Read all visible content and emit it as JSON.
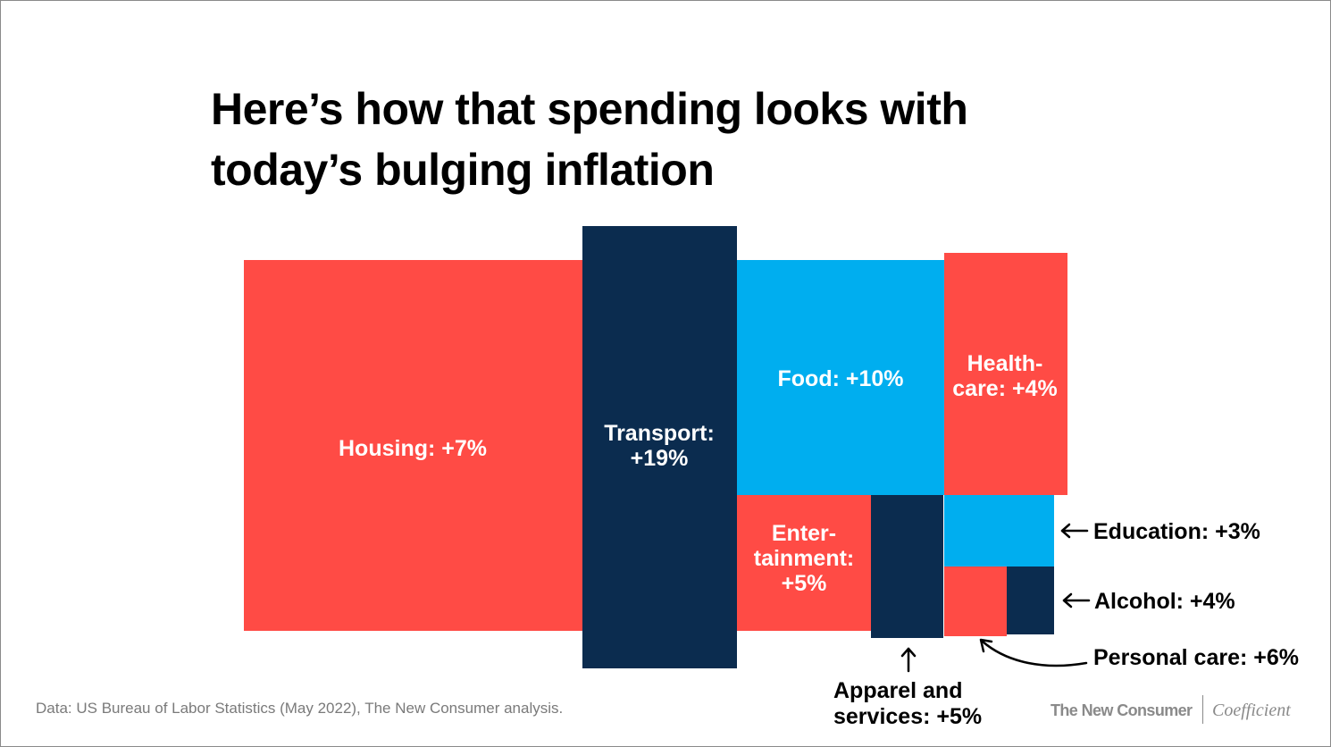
{
  "title": "Here’s how that spending looks with today’s bulging inflation",
  "source": "Data: US Bureau of Labor Statistics (May 2022), The New Consumer analysis.",
  "brands": [
    "The New Consumer",
    "Coefficient"
  ],
  "colors": {
    "red": "#FF4B45",
    "navy": "#0B2C4F",
    "blue": "#00AEEF",
    "text": "#000000"
  },
  "chart_data": {
    "type": "treemap",
    "title": "Here’s how that spending looks with today’s bulging inflation",
    "unit": "% price increase",
    "categories": [
      "Housing",
      "Transport",
      "Food",
      "Healthcare",
      "Entertainment",
      "Apparel and services",
      "Education",
      "Personal care",
      "Alcohol"
    ],
    "values": [
      7,
      19,
      10,
      4,
      5,
      5,
      3,
      6,
      4
    ],
    "labels": {
      "Housing": "Housing: +7%",
      "Transport": [
        "Transport:",
        "+19%"
      ],
      "Food": "Food: +10%",
      "Healthcare": [
        "Health-",
        "care: +4%"
      ],
      "Entertainment": [
        "Enter-",
        "tainment:",
        "+5%"
      ],
      "Apparel and services": [
        "Apparel and",
        "services: +5%"
      ],
      "Education": "Education: +3%",
      "Personal care": "Personal care: +6%",
      "Alcohol": "Alcohol: +4%"
    },
    "colors": {
      "Housing": "red",
      "Transport": "navy",
      "Food": "blue",
      "Healthcare": "red",
      "Entertainment": "red",
      "Apparel and services": "navy",
      "Education": "blue",
      "Personal care": "red",
      "Alcohol": "navy"
    }
  }
}
